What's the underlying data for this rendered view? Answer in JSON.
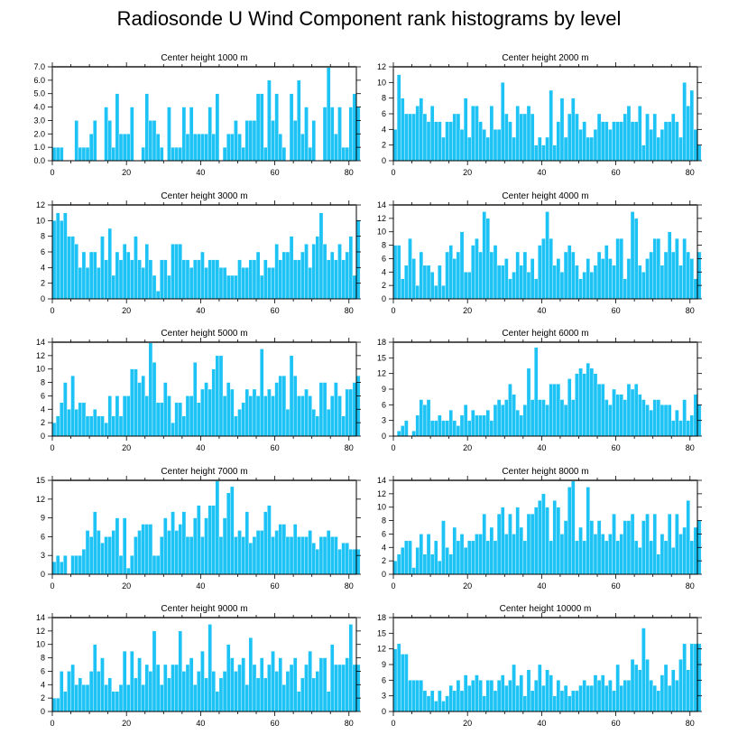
{
  "chart_data": {
    "title": "Radiosonde U Wind Component rank histograms by level",
    "type": "bar",
    "panels": [
      {
        "title": "Center height 1000 m",
        "xlim": [
          0,
          82
        ],
        "ylim": [
          0,
          7
        ],
        "xticks": [
          0,
          20,
          40,
          60,
          80
        ],
        "yticks": [
          0.0,
          1.0,
          2.0,
          3.0,
          4.0,
          5.0,
          6.0,
          7.0
        ],
        "ytick_labels": [
          "0.0",
          "1.0",
          "2.0",
          "3.0",
          "4.0",
          "5.0",
          "6.0",
          "7.0"
        ],
        "values": [
          1,
          1,
          1,
          0,
          0,
          0,
          3,
          1,
          1,
          1,
          2,
          3,
          0,
          0,
          4,
          3,
          1,
          5,
          2,
          2,
          2,
          4,
          0,
          0,
          1,
          5,
          3,
          3,
          2,
          1,
          0,
          4,
          1,
          1,
          1,
          4,
          2,
          4,
          2,
          2,
          2,
          2,
          4,
          2,
          5,
          0,
          1,
          2,
          2,
          3,
          2,
          1,
          3,
          3,
          3,
          5,
          5,
          1,
          6,
          3,
          5,
          2,
          1,
          0,
          5,
          3,
          6,
          2,
          4,
          1,
          3,
          0,
          0,
          4,
          7,
          4,
          2,
          4,
          1,
          1,
          4,
          5,
          4
        ]
      },
      {
        "title": "Center height 2000 m",
        "xlim": [
          0,
          82
        ],
        "ylim": [
          0,
          12
        ],
        "xticks": [
          0,
          20,
          40,
          60,
          80
        ],
        "yticks": [
          0,
          2,
          4,
          6,
          8,
          10,
          12
        ],
        "ytick_labels": [
          "0",
          "2",
          "4",
          "6",
          "8",
          "10",
          "12"
        ],
        "values": [
          4,
          11,
          8,
          6,
          6,
          6,
          7,
          8,
          6,
          5,
          7,
          5,
          5,
          3,
          5,
          5,
          6,
          6,
          4,
          8,
          3,
          7,
          7,
          5,
          4,
          3,
          7,
          4,
          4,
          10,
          6,
          5,
          3,
          7,
          6,
          6,
          7,
          6,
          2,
          3,
          2,
          3,
          9,
          2,
          5,
          8,
          3,
          6,
          8,
          6,
          4,
          5,
          3,
          3,
          4,
          6,
          5,
          5,
          4,
          5,
          5,
          5,
          6,
          7,
          5,
          5,
          7,
          2,
          6,
          4,
          6,
          3,
          4,
          5,
          5,
          6,
          5,
          3,
          10,
          7,
          9,
          4,
          2
        ]
      },
      {
        "title": "Center height 3000 m",
        "xlim": [
          0,
          82
        ],
        "ylim": [
          0,
          12
        ],
        "xticks": [
          0,
          20,
          40,
          60,
          80
        ],
        "yticks": [
          0,
          2,
          4,
          6,
          8,
          10,
          12
        ],
        "ytick_labels": [
          "0",
          "2",
          "4",
          "6",
          "8",
          "10",
          "12"
        ],
        "values": [
          10,
          11,
          10,
          11,
          8,
          8,
          7,
          4,
          6,
          4,
          6,
          6,
          4,
          8,
          5,
          9,
          3,
          6,
          5,
          7,
          6,
          5,
          8,
          5,
          4,
          7,
          5,
          3,
          1,
          5,
          5,
          3,
          7,
          7,
          7,
          5,
          5,
          4,
          5,
          5,
          6,
          4,
          5,
          5,
          5,
          4,
          4,
          3,
          3,
          3,
          5,
          4,
          4,
          5,
          5,
          6,
          3,
          5,
          4,
          4,
          7,
          5,
          6,
          6,
          8,
          5,
          5,
          6,
          7,
          4,
          7,
          8,
          11,
          7,
          5,
          6,
          5,
          7,
          5,
          6,
          8,
          3,
          10
        ]
      },
      {
        "title": "Center height 4000 m",
        "xlim": [
          0,
          82
        ],
        "ylim": [
          0,
          14
        ],
        "xticks": [
          0,
          20,
          40,
          60,
          80
        ],
        "yticks": [
          0,
          2,
          4,
          6,
          8,
          10,
          12,
          14
        ],
        "ytick_labels": [
          "0",
          "2",
          "4",
          "6",
          "8",
          "10",
          "12",
          "14"
        ],
        "values": [
          8,
          8,
          3,
          5,
          9,
          6,
          2,
          7,
          5,
          5,
          4,
          2,
          5,
          2,
          7,
          8,
          6,
          7,
          10,
          4,
          4,
          8,
          9,
          7,
          13,
          12,
          7,
          8,
          5,
          5,
          6,
          3,
          4,
          7,
          5,
          7,
          4,
          6,
          3,
          8,
          9,
          13,
          9,
          5,
          6,
          4,
          7,
          8,
          7,
          5,
          3,
          4,
          6,
          4,
          5,
          7,
          6,
          8,
          6,
          5,
          9,
          9,
          3,
          6,
          13,
          12,
          5,
          4,
          6,
          7,
          9,
          9,
          5,
          7,
          10,
          7,
          9,
          5,
          9,
          7,
          6,
          3,
          7
        ]
      },
      {
        "title": "Center height 5000 m",
        "xlim": [
          0,
          82
        ],
        "ylim": [
          0,
          14
        ],
        "xticks": [
          0,
          20,
          40,
          60,
          80
        ],
        "yticks": [
          0,
          2,
          4,
          6,
          8,
          10,
          12,
          14
        ],
        "ytick_labels": [
          "0",
          "2",
          "4",
          "6",
          "8",
          "10",
          "12",
          "14"
        ],
        "values": [
          2,
          3,
          5,
          8,
          4,
          9,
          4,
          5,
          5,
          3,
          3,
          4,
          3,
          3,
          2,
          6,
          3,
          6,
          3,
          6,
          6,
          10,
          10,
          8,
          9,
          6,
          14,
          11,
          5,
          5,
          8,
          6,
          2,
          5,
          5,
          3,
          6,
          6,
          11,
          5,
          7,
          8,
          7,
          10,
          12,
          12,
          6,
          8,
          7,
          3,
          4,
          5,
          7,
          6,
          7,
          6,
          13,
          6,
          7,
          6,
          8,
          9,
          9,
          4,
          12,
          9,
          6,
          6,
          7,
          6,
          4,
          3,
          8,
          8,
          4,
          6,
          8,
          6,
          3,
          7,
          7,
          8,
          9
        ]
      },
      {
        "title": "Center height 6000 m",
        "xlim": [
          0,
          82
        ],
        "ylim": [
          0,
          18
        ],
        "xticks": [
          0,
          20,
          40,
          60,
          80
        ],
        "yticks": [
          0,
          3,
          6,
          9,
          12,
          15,
          18
        ],
        "ytick_labels": [
          "0",
          "3",
          "6",
          "9",
          "12",
          "15",
          "18"
        ],
        "values": [
          0,
          1,
          2,
          3,
          0,
          1,
          4,
          7,
          6,
          7,
          3,
          3,
          4,
          3,
          3,
          5,
          3,
          2,
          4,
          6,
          3,
          5,
          4,
          4,
          4,
          5,
          3,
          6,
          7,
          6,
          7,
          10,
          8,
          5,
          4,
          6,
          13,
          7,
          17,
          7,
          7,
          6,
          10,
          10,
          10,
          7,
          6,
          11,
          7,
          12,
          13,
          12,
          14,
          13,
          12,
          10,
          10,
          7,
          6,
          9,
          8,
          8,
          7,
          10,
          9,
          10,
          8,
          7,
          6,
          5,
          7,
          7,
          6,
          6,
          6,
          3,
          5,
          3,
          7,
          3,
          4,
          8,
          6
        ]
      },
      {
        "title": "Center height 7000 m",
        "xlim": [
          0,
          82
        ],
        "ylim": [
          0,
          15
        ],
        "xticks": [
          0,
          20,
          40,
          60,
          80
        ],
        "yticks": [
          0,
          3,
          6,
          9,
          12,
          15
        ],
        "ytick_labels": [
          "0",
          "3",
          "6",
          "9",
          "12",
          "15"
        ],
        "values": [
          2,
          3,
          2,
          3,
          0,
          3,
          3,
          3,
          4,
          7,
          6,
          10,
          7,
          5,
          6,
          6,
          7,
          9,
          3,
          9,
          1,
          3,
          6,
          7,
          8,
          8,
          8,
          3,
          3,
          6,
          9,
          7,
          10,
          7,
          8,
          10,
          6,
          6,
          9,
          11,
          6,
          9,
          11,
          11,
          15,
          6,
          9,
          13,
          14,
          6,
          7,
          6,
          10,
          5,
          6,
          7,
          7,
          10,
          11,
          6,
          7,
          8,
          8,
          6,
          6,
          8,
          6,
          6,
          6,
          7,
          5,
          4,
          6,
          6,
          7,
          6,
          6,
          4,
          5,
          5,
          4,
          4,
          4
        ]
      },
      {
        "title": "Center height 8000 m",
        "xlim": [
          0,
          82
        ],
        "ylim": [
          0,
          14
        ],
        "xticks": [
          0,
          20,
          40,
          60,
          80
        ],
        "yticks": [
          0,
          2,
          4,
          6,
          8,
          10,
          12,
          14
        ],
        "ytick_labels": [
          "0",
          "2",
          "4",
          "6",
          "8",
          "10",
          "12",
          "14"
        ],
        "values": [
          2,
          3,
          4,
          5,
          5,
          1,
          4,
          6,
          3,
          6,
          3,
          5,
          2,
          8,
          4,
          3,
          7,
          5,
          6,
          4,
          5,
          5,
          6,
          6,
          9,
          5,
          7,
          5,
          9,
          10,
          6,
          9,
          6,
          10,
          7,
          5,
          9,
          9,
          10,
          11,
          12,
          10,
          5,
          11,
          10,
          6,
          8,
          13,
          14,
          5,
          7,
          5,
          13,
          8,
          6,
          8,
          6,
          5,
          6,
          9,
          5,
          6,
          8,
          8,
          9,
          5,
          4,
          8,
          9,
          5,
          9,
          3,
          6,
          5,
          9,
          4,
          9,
          6,
          7,
          11,
          5,
          7,
          8
        ]
      },
      {
        "title": "Center height 9000 m",
        "xlim": [
          0,
          82
        ],
        "ylim": [
          0,
          14
        ],
        "xticks": [
          0,
          20,
          40,
          60,
          80
        ],
        "yticks": [
          0,
          2,
          4,
          6,
          8,
          10,
          12,
          14
        ],
        "ytick_labels": [
          "0",
          "2",
          "4",
          "6",
          "8",
          "10",
          "12",
          "14"
        ],
        "values": [
          2,
          2,
          6,
          3,
          6,
          7,
          4,
          5,
          4,
          4,
          6,
          10,
          6,
          8,
          4,
          5,
          3,
          3,
          4,
          9,
          4,
          9,
          5,
          8,
          4,
          7,
          6,
          12,
          7,
          4,
          7,
          5,
          7,
          7,
          12,
          6,
          7,
          8,
          4,
          6,
          9,
          5,
          13,
          6,
          3,
          5,
          6,
          10,
          8,
          6,
          7,
          8,
          4,
          11,
          7,
          5,
          8,
          5,
          7,
          9,
          6,
          8,
          4,
          6,
          7,
          8,
          3,
          5,
          7,
          9,
          5,
          6,
          8,
          8,
          3,
          10,
          7,
          7,
          7,
          8,
          13,
          7,
          7
        ]
      },
      {
        "title": "Center height 10000 m",
        "xlim": [
          0,
          82
        ],
        "ylim": [
          0,
          18
        ],
        "xticks": [
          0,
          20,
          40,
          60,
          80
        ],
        "yticks": [
          0,
          3,
          6,
          9,
          12,
          15,
          18
        ],
        "ytick_labels": [
          "0",
          "3",
          "6",
          "9",
          "12",
          "15",
          "18"
        ],
        "values": [
          12,
          13,
          11,
          11,
          6,
          6,
          6,
          6,
          4,
          3,
          4,
          2,
          4,
          2,
          3,
          5,
          4,
          6,
          4,
          7,
          5,
          6,
          7,
          6,
          3,
          6,
          6,
          4,
          6,
          7,
          5,
          6,
          9,
          5,
          7,
          3,
          8,
          4,
          6,
          9,
          5,
          8,
          7,
          3,
          6,
          4,
          5,
          3,
          4,
          4,
          5,
          6,
          5,
          5,
          7,
          6,
          7,
          5,
          6,
          4,
          9,
          5,
          6,
          6,
          10,
          9,
          8,
          16,
          10,
          6,
          5,
          4,
          7,
          9,
          5,
          8,
          6,
          10,
          13,
          8,
          13,
          13,
          13
        ]
      }
    ]
  }
}
